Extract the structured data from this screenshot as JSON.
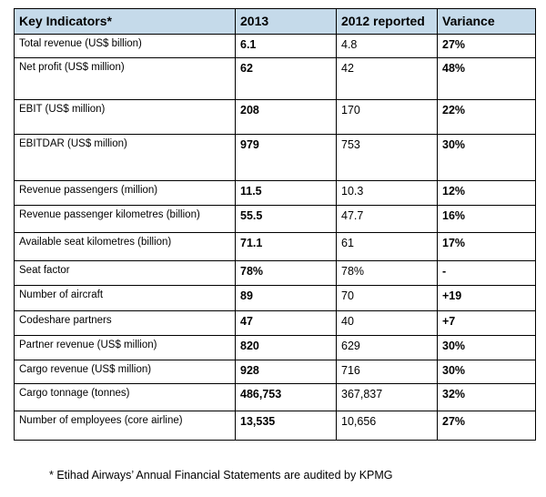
{
  "table": {
    "headers": [
      "Key Indicators*",
      "2013",
      "2012 reported",
      "Variance"
    ],
    "header_bg": "#c5daea",
    "rows": [
      {
        "indicator": "Total revenue (US$ billion)",
        "y2013": "6.1",
        "y2012": "4.8",
        "variance": "27%"
      },
      {
        "indicator": "Net profit (US$ million)",
        "y2013": "62",
        "y2012": "42",
        "variance": "48%"
      },
      {
        "indicator": "EBIT (US$ million)",
        "y2013": "208",
        "y2012": "170",
        "variance": "22%"
      },
      {
        "indicator": "EBITDAR (US$ million)",
        "y2013": "979",
        "y2012": "753",
        "variance": "30%"
      },
      {
        "indicator": "Revenue passengers (million)",
        "y2013": "11.5",
        "y2012": "10.3",
        "variance": "12%"
      },
      {
        "indicator": "Revenue passenger kilometres (billion)",
        "y2013": "55.5",
        "y2012": "47.7",
        "variance": "16%"
      },
      {
        "indicator": "Available seat kilometres (billion)",
        "y2013": "71.1",
        "y2012": "61",
        "variance": "17%"
      },
      {
        "indicator": "Seat factor",
        "y2013": "78%",
        "y2012": "78%",
        "variance": "-"
      },
      {
        "indicator": "Number of aircraft",
        "y2013": "89",
        "y2012": "70",
        "variance": "+19"
      },
      {
        "indicator": "Codeshare partners",
        "y2013": "47",
        "y2012": "40",
        "variance": "+7"
      },
      {
        "indicator": "Partner revenue (US$ million)",
        "y2013": "820",
        "y2012": "629",
        "variance": "30%"
      },
      {
        "indicator": "Cargo revenue (US$ million)",
        "y2013": "928",
        "y2012": "716",
        "variance": "30%"
      },
      {
        "indicator": "Cargo tonnage (tonnes)",
        "y2013": "486,753",
        "y2012": "367,837",
        "variance": "32%"
      },
      {
        "indicator": "Number of employees (core airline)",
        "y2013": "13,535",
        "y2012": "10,656",
        "variance": "27%"
      }
    ]
  },
  "footnote": "* Etihad Airways’ Annual Financial Statements are audited by KPMG"
}
